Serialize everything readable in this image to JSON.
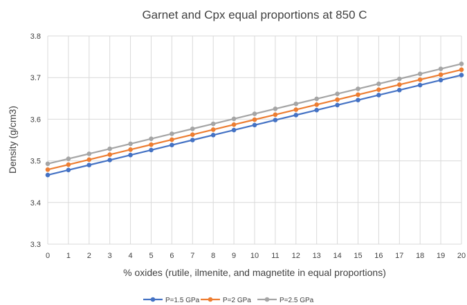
{
  "chart_data": {
    "type": "line",
    "title": "Garnet and Cpx equal proportions at 850 C",
    "xlabel": "% oxides (rutile, ilmenite, and magnetite in equal proportions)",
    "ylabel": "Density (g/cm3)",
    "x": [
      0,
      1,
      2,
      3,
      4,
      5,
      6,
      7,
      8,
      9,
      10,
      11,
      12,
      13,
      14,
      15,
      16,
      17,
      18,
      19,
      20
    ],
    "xlim": [
      0,
      20
    ],
    "ylim": [
      3.3,
      3.8
    ],
    "yticks": [
      "3.3",
      "3.4",
      "3.5",
      "3.6",
      "3.7",
      "3.8"
    ],
    "grid": true,
    "legend_position": "bottom",
    "series": [
      {
        "name": "P=1.5 GPa",
        "color": "#4472c4",
        "values": [
          3.466,
          3.478,
          3.49,
          3.502,
          3.514,
          3.526,
          3.538,
          3.55,
          3.562,
          3.574,
          3.586,
          3.598,
          3.61,
          3.622,
          3.634,
          3.646,
          3.658,
          3.67,
          3.682,
          3.694,
          3.706
        ]
      },
      {
        "name": "P=2 GPa",
        "color": "#ed7d31",
        "values": [
          3.479,
          3.491,
          3.503,
          3.515,
          3.527,
          3.539,
          3.551,
          3.563,
          3.575,
          3.587,
          3.599,
          3.611,
          3.623,
          3.635,
          3.647,
          3.659,
          3.671,
          3.683,
          3.695,
          3.707,
          3.719
        ]
      },
      {
        "name": "P=2.5 GPa",
        "color": "#a5a5a5",
        "values": [
          3.493,
          3.505,
          3.517,
          3.529,
          3.541,
          3.553,
          3.565,
          3.577,
          3.589,
          3.601,
          3.613,
          3.625,
          3.637,
          3.649,
          3.661,
          3.673,
          3.685,
          3.697,
          3.709,
          3.721,
          3.733
        ]
      }
    ]
  }
}
